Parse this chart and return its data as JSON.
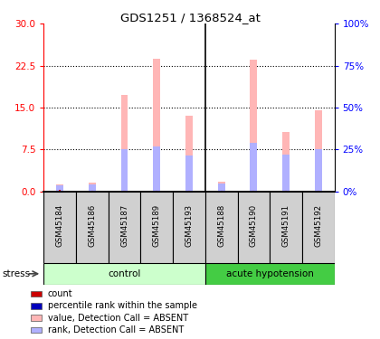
{
  "title": "GDS1251 / 1368524_at",
  "samples": [
    "GSM45184",
    "GSM45186",
    "GSM45187",
    "GSM45189",
    "GSM45193",
    "GSM45188",
    "GSM45190",
    "GSM45191",
    "GSM45192"
  ],
  "value_absent": [
    1.3,
    1.6,
    17.2,
    23.7,
    13.5,
    1.7,
    23.6,
    10.6,
    14.6
  ],
  "rank_absent": [
    1.1,
    1.35,
    7.6,
    8.1,
    6.5,
    1.4,
    8.7,
    6.6,
    7.6
  ],
  "count_val": [
    0.28,
    0.08,
    0.08,
    0.08,
    0.08,
    0.22,
    0.08,
    0.08,
    0.08
  ],
  "count_rank": [
    0.22,
    0.05,
    0.05,
    0.05,
    0.05,
    0.15,
    0.05,
    0.05,
    0.05
  ],
  "ylim_left": [
    0,
    30
  ],
  "ylim_right": [
    0,
    100
  ],
  "yticks_left": [
    0,
    7.5,
    15,
    22.5,
    30
  ],
  "yticks_right": [
    0,
    25,
    50,
    75,
    100
  ],
  "ytick_labels_right": [
    "0%",
    "25%",
    "50%",
    "75%",
    "100%"
  ],
  "color_value_absent": "#ffb6b6",
  "color_rank_absent": "#b0b0ff",
  "color_count": "#cc0000",
  "color_rank": "#0000bb",
  "ctrl_color_light": "#ccffcc",
  "ctrl_color_dark": "#44cc44",
  "legend_entries": [
    [
      "count",
      "#cc0000"
    ],
    [
      "percentile rank within the sample",
      "#0000bb"
    ],
    [
      "value, Detection Call = ABSENT",
      "#ffb6b6"
    ],
    [
      "rank, Detection Call = ABSENT",
      "#b0b0ff"
    ]
  ],
  "n_control": 5,
  "n_acute": 4
}
